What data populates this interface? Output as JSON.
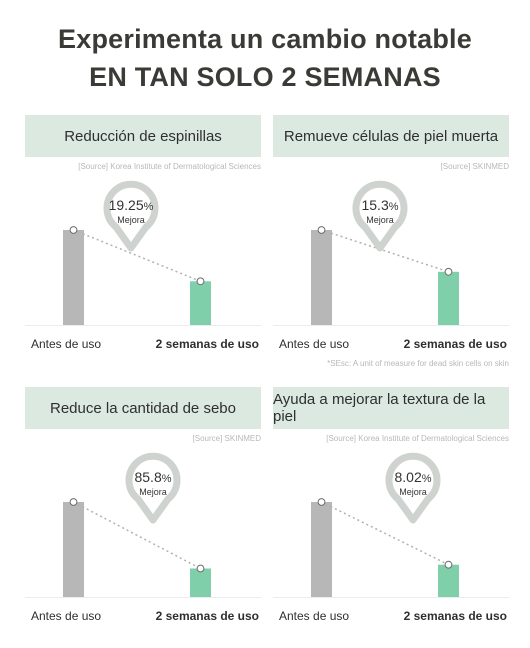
{
  "headline": {
    "line1": "Experimenta un cambio notable",
    "line2": "EN TAN SOLO 2 SEMANAS"
  },
  "colors": {
    "before_bar": "#b7b7b7",
    "after_bar": "#7fd0aa",
    "pill_bg": "#dbe9e1",
    "badge_stroke": "#cfd3d0"
  },
  "chart_data": [
    {
      "type": "bar",
      "title": "Reducción de espinillas",
      "source": "[Source] Korea Institute of Dermatological Sciences",
      "categories": [
        "Antes de uso",
        "2 semanas de uso"
      ],
      "values": [
        100,
        46
      ],
      "badge": {
        "value": "19.25",
        "unit": "%",
        "label": "Mejora"
      }
    },
    {
      "type": "bar",
      "title": "Remueve células de piel muerta",
      "source": "[Source] SKINMED",
      "categories": [
        "Antes de uso",
        "2 semanas de uso"
      ],
      "values": [
        100,
        56
      ],
      "badge": {
        "value": "15.3",
        "unit": "%",
        "label": "Mejora"
      },
      "note": "*SEsc: A unit of measure for dead skin cells on skin"
    },
    {
      "type": "bar",
      "title": "Reduce la cantidad de sebo",
      "source": "[Source] SKINMED",
      "categories": [
        "Antes de uso",
        "2 semanas de uso"
      ],
      "values": [
        100,
        30
      ],
      "badge": {
        "value": "85.8",
        "unit": "%",
        "label": "Mejora"
      }
    },
    {
      "type": "bar",
      "title": "Ayuda a mejorar la textura de la piel",
      "source": "[Source] Korea Institute of Dermatological Sciences",
      "categories": [
        "Antes de uso",
        "2 semanas de uso"
      ],
      "values": [
        100,
        34
      ],
      "badge": {
        "value": "8.02",
        "unit": "%",
        "label": "Mejora"
      }
    }
  ]
}
